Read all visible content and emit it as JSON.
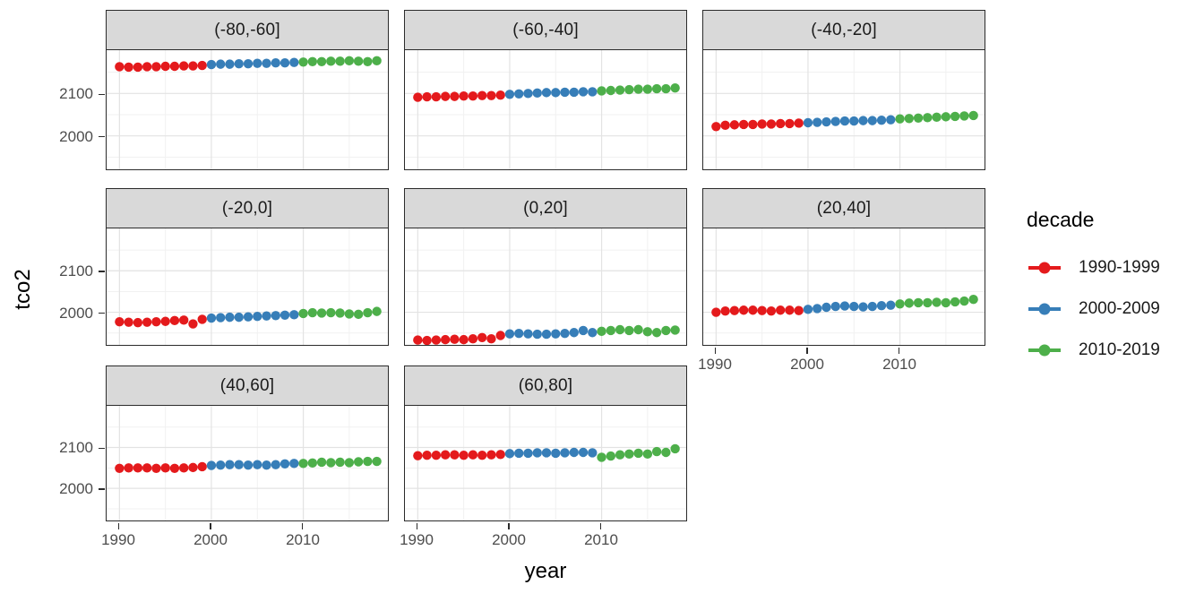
{
  "axis": {
    "y_title": "tco2",
    "x_title": "year",
    "y_tick_labels": [
      "2100",
      "2000"
    ],
    "x_tick_labels": [
      "1990",
      "2000",
      "2010"
    ]
  },
  "legend": {
    "title": "decade",
    "entries": [
      {
        "label": "1990-1999",
        "color": "#E41A1C"
      },
      {
        "label": "2000-2009",
        "color": "#377EB8"
      },
      {
        "label": "2010-2019",
        "color": "#4DAF4A"
      }
    ]
  },
  "colors": {
    "strip_background": "#D9D9D9",
    "panel_border": "#2b2b2b",
    "grid_major": "#E3E3E3",
    "grid_minor": "#F1F1F1",
    "tick_label": "#4d4d4d"
  },
  "chart_data": {
    "type": "scatter",
    "title": "",
    "xlabel": "year",
    "ylabel": "tco2",
    "xlim": [
      1988.6,
      2019.4
    ],
    "ylim": [
      1917,
      2202
    ],
    "x_major_ticks": [
      1990,
      2000,
      2010
    ],
    "x_minor_ticks": [
      1995,
      2005,
      2015
    ],
    "y_major_ticks": [
      2000,
      2100
    ],
    "y_minor_ticks": [
      1950,
      2050,
      2150
    ],
    "grid": true,
    "legend_position": "right",
    "point_radius_px": 5.2,
    "x_by_series": {
      "1990-1999": [
        1990,
        1991,
        1992,
        1993,
        1994,
        1995,
        1996,
        1997,
        1998,
        1999
      ],
      "2000-2009": [
        2000,
        2001,
        2002,
        2003,
        2004,
        2005,
        2006,
        2007,
        2008,
        2009
      ],
      "2010-2019": [
        2010,
        2011,
        2012,
        2013,
        2014,
        2015,
        2016,
        2017,
        2018
      ]
    },
    "panels": [
      {
        "facet": "(-80,-60]",
        "series": [
          {
            "name": "1990-1999",
            "y": [
              2163,
              2162,
              2162,
              2163,
              2163,
              2164,
              2164,
              2165,
              2165,
              2166
            ]
          },
          {
            "name": "2000-2009",
            "y": [
              2168,
              2169,
              2169,
              2170,
              2170,
              2171,
              2171,
              2172,
              2172,
              2173
            ]
          },
          {
            "name": "2010-2019",
            "y": [
              2174,
              2175,
              2175,
              2176,
              2176,
              2177,
              2176,
              2175,
              2177
            ]
          }
        ]
      },
      {
        "facet": "(-60,-40]",
        "series": [
          {
            "name": "1990-1999",
            "y": [
              2091,
              2092,
              2092,
              2093,
              2093,
              2094,
              2094,
              2095,
              2095,
              2096
            ]
          },
          {
            "name": "2000-2009",
            "y": [
              2098,
              2099,
              2100,
              2101,
              2102,
              2102,
              2103,
              2103,
              2104,
              2104
            ]
          },
          {
            "name": "2010-2019",
            "y": [
              2106,
              2107,
              2108,
              2109,
              2110,
              2110,
              2111,
              2111,
              2113
            ]
          }
        ]
      },
      {
        "facet": "(-40,-20]",
        "series": [
          {
            "name": "1990-1999",
            "y": [
              2022,
              2025,
              2026,
              2027,
              2027,
              2028,
              2028,
              2029,
              2029,
              2030
            ]
          },
          {
            "name": "2000-2009",
            "y": [
              2031,
              2032,
              2033,
              2034,
              2035,
              2035,
              2036,
              2036,
              2037,
              2038
            ]
          },
          {
            "name": "2010-2019",
            "y": [
              2040,
              2041,
              2042,
              2043,
              2044,
              2045,
              2046,
              2047,
              2048
            ]
          }
        ]
      },
      {
        "facet": "(-20,0]",
        "series": [
          {
            "name": "1990-1999",
            "y": [
              1977,
              1976,
              1975,
              1976,
              1977,
              1978,
              1980,
              1981,
              1972,
              1983
            ]
          },
          {
            "name": "2000-2009",
            "y": [
              1986,
              1987,
              1988,
              1988,
              1989,
              1990,
              1991,
              1992,
              1993,
              1994
            ]
          },
          {
            "name": "2010-2019",
            "y": [
              1997,
              1999,
              1998,
              1999,
              1998,
              1996,
              1995,
              1999,
              2002
            ]
          }
        ]
      },
      {
        "facet": "(0,20]",
        "series": [
          {
            "name": "1990-1999",
            "y": [
              1933,
              1932,
              1933,
              1934,
              1935,
              1934,
              1936,
              1939,
              1936,
              1944
            ]
          },
          {
            "name": "2000-2009",
            "y": [
              1948,
              1949,
              1948,
              1947,
              1947,
              1948,
              1949,
              1951,
              1956,
              1951
            ]
          },
          {
            "name": "2010-2019",
            "y": [
              1954,
              1956,
              1958,
              1956,
              1958,
              1953,
              1951,
              1956,
              1957
            ]
          }
        ]
      },
      {
        "facet": "(20,40]",
        "series": [
          {
            "name": "1990-1999",
            "y": [
              2000,
              2003,
              2004,
              2005,
              2005,
              2004,
              2003,
              2005,
              2005,
              2004
            ]
          },
          {
            "name": "2000-2009",
            "y": [
              2007,
              2009,
              2012,
              2014,
              2015,
              2014,
              2013,
              2014,
              2016,
              2017
            ]
          },
          {
            "name": "2010-2019",
            "y": [
              2020,
              2022,
              2023,
              2023,
              2024,
              2023,
              2025,
              2027,
              2031
            ]
          }
        ]
      },
      {
        "facet": "(40,60]",
        "series": [
          {
            "name": "1990-1999",
            "y": [
              2049,
              2050,
              2050,
              2050,
              2049,
              2050,
              2049,
              2050,
              2051,
              2053
            ]
          },
          {
            "name": "2000-2009",
            "y": [
              2056,
              2057,
              2058,
              2058,
              2057,
              2058,
              2057,
              2058,
              2060,
              2061
            ]
          },
          {
            "name": "2010-2019",
            "y": [
              2061,
              2062,
              2064,
              2063,
              2064,
              2063,
              2065,
              2066,
              2066
            ]
          }
        ]
      },
      {
        "facet": "(60,80]",
        "series": [
          {
            "name": "1990-1999",
            "y": [
              2080,
              2081,
              2081,
              2082,
              2082,
              2081,
              2082,
              2081,
              2082,
              2083
            ]
          },
          {
            "name": "2000-2009",
            "y": [
              2085,
              2086,
              2086,
              2087,
              2087,
              2086,
              2087,
              2088,
              2088,
              2087
            ]
          },
          {
            "name": "2010-2019",
            "y": [
              2076,
              2079,
              2082,
              2084,
              2086,
              2084,
              2090,
              2088,
              2097
            ]
          }
        ]
      }
    ]
  }
}
